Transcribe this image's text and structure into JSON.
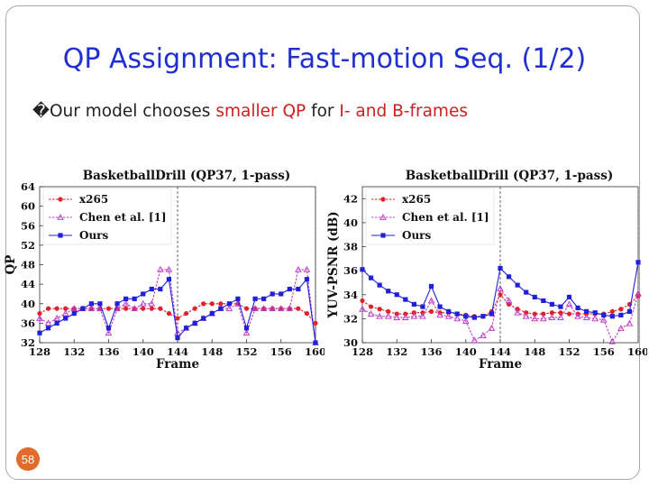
{
  "slide": {
    "title": "QP Assignment: Fast-motion Seq. (1/2)",
    "bullet": {
      "glyph": "�",
      "prefix": "Our model chooses ",
      "highlight1": "smaller QP",
      "middle": " for ",
      "highlight2": "I- and B-frames"
    },
    "page_number": "58",
    "accent_color": "#1f2fd0",
    "highlight_color": "#cc1f1f",
    "badge_color": "#e06b2a"
  },
  "chart_data": [
    {
      "type": "line",
      "title": "BasketballDrill (QP37, 1-pass)",
      "xlabel": "Frame",
      "ylabel": "QP",
      "xlim": [
        128,
        160
      ],
      "ylim": [
        32,
        64
      ],
      "xticks": [
        128,
        132,
        136,
        140,
        144,
        148,
        152,
        156,
        160
      ],
      "yticks": [
        32,
        36,
        40,
        44,
        48,
        52,
        56,
        60,
        64
      ],
      "legend_position": "top-left",
      "x": [
        128,
        129,
        130,
        131,
        132,
        133,
        134,
        135,
        136,
        137,
        138,
        139,
        140,
        141,
        142,
        143,
        144,
        145,
        146,
        147,
        148,
        149,
        150,
        151,
        152,
        153,
        154,
        155,
        156,
        157,
        158,
        159,
        160
      ],
      "series": [
        {
          "name": "x265",
          "color": "#e0202a",
          "marker": "circle",
          "values": [
            38,
            39,
            39,
            39,
            39,
            39,
            39,
            39,
            39,
            39,
            39,
            39,
            39,
            39,
            39,
            38,
            37,
            38,
            39,
            40,
            40,
            40,
            40,
            40,
            39,
            39,
            39,
            39,
            39,
            39,
            39,
            38,
            36
          ]
        },
        {
          "name": "Chen et al. [1]",
          "color": "#c040c8",
          "marker": "triangle",
          "values": [
            37,
            36,
            37,
            38,
            39,
            39,
            39,
            39,
            34,
            39,
            40,
            39,
            40,
            40,
            47,
            47,
            34,
            35,
            36,
            37,
            38,
            39,
            39,
            40,
            34,
            39,
            39,
            39,
            39,
            39,
            47,
            47,
            32
          ]
        },
        {
          "name": "Ours",
          "color": "#2020d8",
          "marker": "square",
          "values": [
            34,
            35,
            36,
            37,
            38,
            39,
            40,
            40,
            35,
            40,
            41,
            41,
            42,
            43,
            43,
            45,
            33,
            35,
            36,
            37,
            38,
            39,
            40,
            41,
            35,
            41,
            41,
            42,
            42,
            43,
            43,
            45,
            32
          ]
        }
      ]
    },
    {
      "type": "line",
      "title": "BasketballDrill (QP37, 1-pass)",
      "xlabel": "Frame",
      "ylabel": "YUV-PSNR (dB)",
      "xlim": [
        128,
        160
      ],
      "ylim": [
        30,
        43
      ],
      "xticks": [
        128,
        132,
        136,
        140,
        144,
        148,
        152,
        156,
        160
      ],
      "yticks": [
        30,
        32,
        34,
        36,
        38,
        40,
        42
      ],
      "legend_position": "top-left",
      "x": [
        128,
        129,
        130,
        131,
        132,
        133,
        134,
        135,
        136,
        137,
        138,
        139,
        140,
        141,
        142,
        143,
        144,
        145,
        146,
        147,
        148,
        149,
        150,
        151,
        152,
        153,
        154,
        155,
        156,
        157,
        158,
        159,
        160
      ],
      "series": [
        {
          "name": "x265",
          "color": "#e0202a",
          "marker": "circle",
          "values": [
            33.5,
            33,
            32.8,
            32.6,
            32.4,
            32.4,
            32.5,
            32.5,
            32.6,
            32.5,
            32.5,
            32.4,
            32.3,
            32.2,
            32.2,
            32.6,
            34,
            33.2,
            32.8,
            32.5,
            32.4,
            32.4,
            32.5,
            32.5,
            32.4,
            32.4,
            32.4,
            32.4,
            32.4,
            32.6,
            32.8,
            33.2,
            33.9
          ]
        },
        {
          "name": "Chen et al. [1]",
          "color": "#c040c8",
          "marker": "triangle",
          "values": [
            32.8,
            32.4,
            32.2,
            32.2,
            32.1,
            32.1,
            32.2,
            32.2,
            33.5,
            32.3,
            32.2,
            32.0,
            31.8,
            30.2,
            30.6,
            31.2,
            34.5,
            33.5,
            32.5,
            32.2,
            32.0,
            32.0,
            32.1,
            32.1,
            33.2,
            32.2,
            32.1,
            32.0,
            31.9,
            30.1,
            31.2,
            31.6,
            34.1
          ]
        },
        {
          "name": "Ours",
          "color": "#2020d8",
          "marker": "square",
          "values": [
            36.1,
            35.4,
            34.8,
            34.3,
            34.0,
            33.6,
            33.2,
            33.0,
            34.7,
            33.0,
            32.6,
            32.4,
            32.2,
            32.1,
            32.2,
            32.4,
            36.2,
            35.5,
            34.8,
            34.2,
            33.8,
            33.5,
            33.2,
            33.0,
            33.8,
            32.9,
            32.6,
            32.5,
            32.3,
            32.2,
            32.3,
            32.6,
            36.7
          ]
        }
      ]
    }
  ]
}
